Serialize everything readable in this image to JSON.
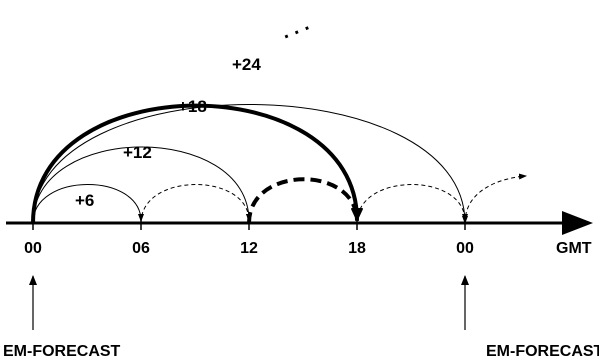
{
  "axis": {
    "ticks": [
      "00",
      "06",
      "12",
      "18",
      "00"
    ],
    "unit_label": "GMT"
  },
  "arcs": {
    "forecast_6": "+6",
    "forecast_12": "+12",
    "forecast_18": "+18",
    "forecast_24": "+24"
  },
  "continuation": ". . .",
  "markers": {
    "left_label": "EM-FORECAST",
    "right_label": "EM-FORECAST"
  },
  "colors": {
    "ink": "#000000",
    "background": "#ffffff"
  }
}
